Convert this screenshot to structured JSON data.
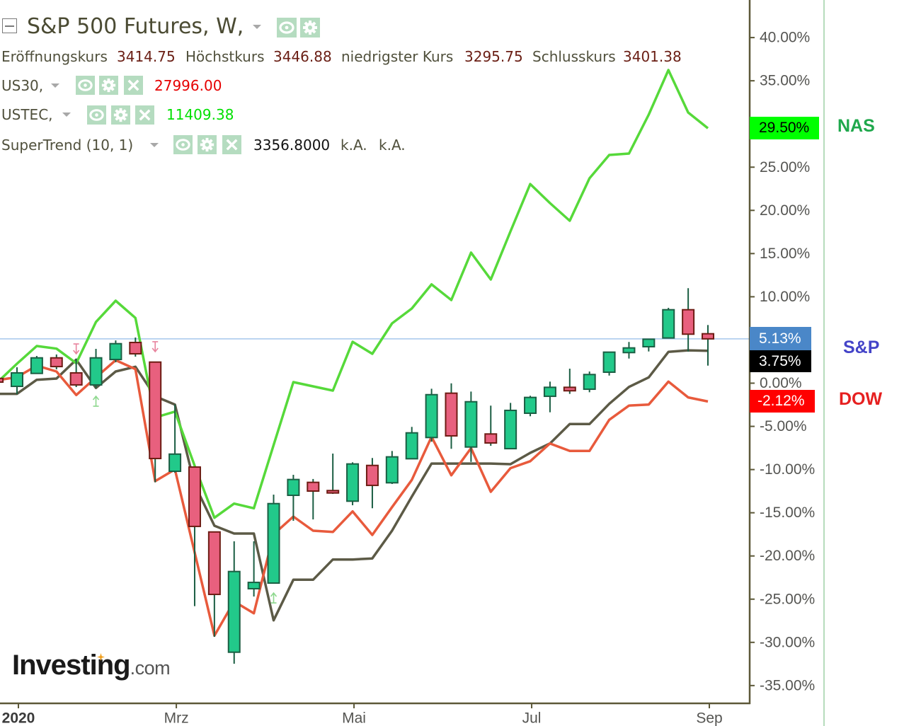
{
  "legend": {
    "main": {
      "title": "S&P 500 Futures, W,",
      "collapse_icon": "minus-square-icon",
      "icons": [
        "eye-icon",
        "gear-icon"
      ]
    },
    "ohlc": [
      {
        "label": "Eröffnungskurs",
        "value": "3414.75"
      },
      {
        "label": "Höchstkurs",
        "value": "3446.88"
      },
      {
        "label": "niedrigster Kurs",
        "value": "3295.75"
      },
      {
        "label": "Schlusskurs",
        "value": "3401.38"
      }
    ],
    "label_color": "#50503c",
    "ohlc_value_color": "#6a1e14",
    "studies": [
      {
        "name": "US30,",
        "value": "27996.00",
        "value_color": "#e60000",
        "icons": [
          "eye-icon",
          "gear-icon",
          "close-icon"
        ]
      },
      {
        "name": "USTEC,",
        "value": "11409.38",
        "value_color": "#00e000",
        "icons": [
          "eye-icon",
          "gear-icon",
          "close-icon"
        ]
      },
      {
        "name": "SuperTrend (10, 1)",
        "value": "3356.8000",
        "value_color": "#111111",
        "extra": [
          "k.A.",
          "k.A."
        ],
        "icons": [
          "eye-icon",
          "gear-icon",
          "close-icon"
        ]
      }
    ]
  },
  "price_axis_labels": [
    {
      "id": "nas",
      "text": "29.50%",
      "bg": "#00ff00",
      "color": "#000000"
    },
    {
      "id": "sp",
      "text": "5.13%",
      "bg": "#4a87c8",
      "color": "#ffffff"
    },
    {
      "id": "supertrend",
      "text": "3.75%",
      "bg": "#000000",
      "color": "#ffffff"
    },
    {
      "id": "dow",
      "text": "-2.12%",
      "bg": "#ff0000",
      "color": "#ffffff"
    }
  ],
  "annotations": [
    {
      "text": "NAS",
      "color": "#1fa84c"
    },
    {
      "text": "S&P",
      "color": "#4444c8"
    },
    {
      "text": "DOW",
      "color": "#e62020"
    }
  ],
  "watermark": {
    "brand": "Investing",
    "suffix": ".com",
    "spark_color": "#f0a020"
  },
  "chart_data": {
    "type": "candlestick",
    "title": "S&P 500 Futures, W,",
    "xlabel": "",
    "ylabel": "",
    "y_unit": "%",
    "ylim": [
      -37.0,
      44.3
    ],
    "grid": false,
    "legend_position": "top-left",
    "index_start": -1,
    "x_ticks": [
      {
        "label": "2020",
        "index": 0,
        "bold": true
      },
      {
        "label": "Mrz",
        "index": 8,
        "bold": false
      },
      {
        "label": "Mai",
        "index": 17,
        "bold": false
      },
      {
        "label": "Jul",
        "index": 26,
        "bold": false
      },
      {
        "label": "Sep",
        "index": 35,
        "bold": false
      }
    ],
    "y_ticks": [
      {
        "value": 40,
        "label": "40.00%"
      },
      {
        "value": 35,
        "label": "35.00%"
      },
      {
        "value": 30,
        "label": "30.00%"
      },
      {
        "value": 25,
        "label": "25.00%"
      },
      {
        "value": 20,
        "label": "20.00%"
      },
      {
        "value": 15,
        "label": "15.00%"
      },
      {
        "value": 10,
        "label": "10.00%"
      },
      {
        "value": 5,
        "label": "5.00%"
      },
      {
        "value": 0,
        "label": "0.00%"
      },
      {
        "value": -5,
        "label": "-5.00%"
      },
      {
        "value": -10,
        "label": "-10.00%"
      },
      {
        "value": -15,
        "label": "-15.00%"
      },
      {
        "value": -20,
        "label": "-20.00%"
      },
      {
        "value": -25,
        "label": "-25.00%"
      },
      {
        "value": -30,
        "label": "-30.00%"
      },
      {
        "value": -35,
        "label": "-35.00%"
      }
    ],
    "candles_format": [
      "open",
      "high",
      "low",
      "close"
    ],
    "candles": [
      [
        0.55,
        0.9,
        -0.2,
        0.12
      ],
      [
        -0.37,
        1.84,
        -1.27,
        1.19
      ],
      [
        1.13,
        3.15,
        1.11,
        2.93
      ],
      [
        2.93,
        3.32,
        1.6,
        1.92
      ],
      [
        1.19,
        2.83,
        -0.45,
        -0.2
      ],
      [
        -0.2,
        3.97,
        -0.53,
        2.93
      ],
      [
        2.74,
        4.95,
        2.42,
        4.57
      ],
      [
        4.71,
        5.28,
        3.07,
        3.4
      ],
      [
        2.44,
        2.5,
        -11.48,
        -8.72
      ],
      [
        -10.2,
        -2.47,
        -10.36,
        -8.21
      ],
      [
        -9.71,
        -9.71,
        -25.81,
        -16.58
      ],
      [
        -17.22,
        -17.22,
        -29.36,
        -24.45
      ],
      [
        -31.14,
        -18.3,
        -32.47,
        -21.8
      ],
      [
        -23.79,
        -18.3,
        -24.69,
        -23.06
      ],
      [
        -23.14,
        -12.9,
        -23.14,
        -13.94
      ],
      [
        -12.98,
        -10.61,
        -15.93,
        -11.15
      ],
      [
        -11.48,
        -11.09,
        -15.77,
        -12.49
      ],
      [
        -12.43,
        -8.15,
        -12.82,
        -12.71
      ],
      [
        -13.66,
        -9.16,
        -14.13,
        -9.35
      ],
      [
        -9.52,
        -8.66,
        -14.48,
        -11.83
      ],
      [
        -11.53,
        -7.85,
        -11.67,
        -8.53
      ],
      [
        -8.75,
        -5.06,
        -8.75,
        -5.75
      ],
      [
        -6.29,
        -0.64,
        -6.78,
        -1.33
      ],
      [
        -1.16,
        -0.02,
        -7.6,
        -6.1
      ],
      [
        -7.39,
        -0.97,
        -9.11,
        -2.15
      ],
      [
        -5.88,
        -2.6,
        -7.25,
        -6.92
      ],
      [
        -7.58,
        -2.28,
        -7.58,
        -3.15
      ],
      [
        -3.48,
        -1.46,
        -3.83,
        -1.65
      ],
      [
        -1.52,
        0.18,
        -3.37,
        -0.48
      ],
      [
        -0.48,
        1.68,
        -1.24,
        -0.88
      ],
      [
        -0.7,
        1.35,
        -1.05,
        1.0
      ],
      [
        1.27,
        3.59,
        0.88,
        3.59
      ],
      [
        3.54,
        4.77,
        2.85,
        4.08
      ],
      [
        4.22,
        5.09,
        3.67,
        5.09
      ],
      [
        5.23,
        8.72,
        5.23,
        8.5
      ],
      [
        8.5,
        10.99,
        3.67,
        5.67
      ],
      [
        5.72,
        6.73,
        2.03,
        5.13
      ]
    ],
    "candle_colors": {
      "up_fill": "#22c98a",
      "up_border": "#1b5e43",
      "down_fill": "#e8607e",
      "down_border": "#6e1c14",
      "wick": "#1b5e43"
    },
    "series": [
      {
        "id": "supertrend",
        "name": "SuperTrend (10, 1)",
        "color": "#5c5a46",
        "values": [
          -1.24,
          -1.24,
          0.39,
          0.53,
          2.72,
          -0.56,
          1.35,
          1.9,
          -1.52,
          -2.47,
          -11.75,
          -16.5,
          -17.4,
          -17.4,
          -27.45,
          -22.75,
          -22.75,
          -20.41,
          -20.41,
          -20.29,
          -17.08,
          -13.14,
          -9.3,
          -9.3,
          -9.3,
          -9.3,
          -9.38,
          -8.07,
          -6.98,
          -4.73,
          -4.73,
          -2.39,
          -0.43,
          0.67,
          3.62,
          3.8,
          3.75
        ]
      },
      {
        "id": "us30",
        "name": "US30 (DOW)",
        "color": "#e85a3c",
        "values": [
          0.34,
          0.7,
          2.03,
          1.35,
          -1.38,
          0.67,
          2.66,
          1.62,
          -11.34,
          -9.98,
          -19.61,
          -29.22,
          -25.27,
          -26.63,
          -17.49,
          -15.44,
          -17.08,
          -17.22,
          -14.84,
          -17.57,
          -14.35,
          -11.2,
          -6.21,
          -10.66,
          -7.52,
          -12.57,
          -9.84,
          -9.03,
          -6.98,
          -7.85,
          -7.85,
          -4.24,
          -2.6,
          -2.47,
          0.18,
          -1.65,
          -2.12
        ]
      },
      {
        "id": "ustec",
        "name": "USTEC (NAS)",
        "color": "#56d93a",
        "values": [
          0.08,
          2.25,
          4.3,
          4.0,
          2.31,
          7.08,
          9.54,
          7.55,
          -3.97,
          -3.29,
          -9.57,
          -15.58,
          -13.94,
          -14.48,
          -7.17,
          0.12,
          -0.37,
          -0.86,
          4.79,
          3.4,
          6.92,
          8.64,
          11.43,
          9.62,
          15.11,
          12.0,
          17.57,
          23.05,
          20.84,
          18.8,
          23.71,
          26.41,
          26.58,
          31.08,
          36.24,
          31.33,
          29.5
        ]
      }
    ],
    "last_price_line": {
      "value": 5.13,
      "color": "#a6c8ec"
    },
    "signals": [
      {
        "type": "sell",
        "index": 3,
        "value": 3.97,
        "color": "#e8849e"
      },
      {
        "type": "buy",
        "index": 4,
        "value": -2.09,
        "color": "#8ed88e"
      },
      {
        "type": "sell",
        "index": 7,
        "value": 4.22,
        "color": "#e8849e"
      },
      {
        "type": "buy",
        "index": 13,
        "value": -24.86,
        "color": "#8ed88e"
      }
    ],
    "axis_color": "#5c5838"
  }
}
